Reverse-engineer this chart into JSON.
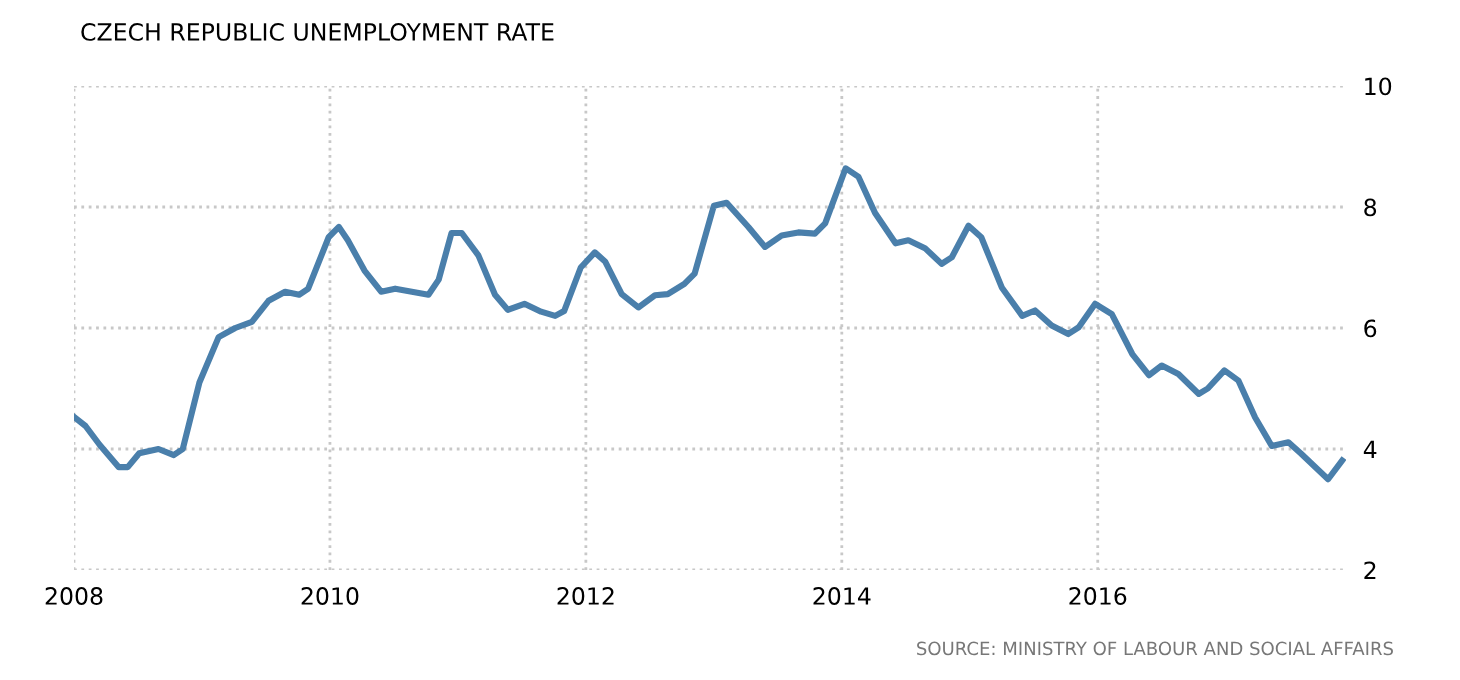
{
  "chart_data": {
    "type": "line",
    "title": "CZECH REPUBLIC UNEMPLOYMENT RATE",
    "annotations": [
      "SOURCE: MINISTRY OF LABOUR AND SOCIAL AFFAIRS"
    ],
    "x": [
      2008.0,
      2008.09,
      2008.2,
      2008.35,
      2008.42,
      2008.51,
      2008.66,
      2008.78,
      2008.85,
      2008.98,
      2009.13,
      2009.26,
      2009.39,
      2009.52,
      2009.65,
      2009.76,
      2009.83,
      2009.99,
      2010.07,
      2010.14,
      2010.27,
      2010.4,
      2010.51,
      2010.64,
      2010.77,
      2010.85,
      2010.95,
      2011.03,
      2011.16,
      2011.29,
      2011.39,
      2011.52,
      2011.65,
      2011.76,
      2011.83,
      2011.96,
      2012.07,
      2012.15,
      2012.28,
      2012.41,
      2012.54,
      2012.64,
      2012.77,
      2012.85,
      2013.0,
      2013.1,
      2013.27,
      2013.4,
      2013.53,
      2013.66,
      2013.79,
      2013.87,
      2014.03,
      2014.13,
      2014.26,
      2014.42,
      2014.52,
      2014.65,
      2014.78,
      2014.86,
      2014.99,
      2015.09,
      2015.25,
      2015.41,
      2015.51,
      2015.64,
      2015.77,
      2015.85,
      2015.98,
      2016.11,
      2016.27,
      2016.4,
      2016.5,
      2016.63,
      2016.79,
      2016.86,
      2016.99,
      2017.1,
      2017.23,
      2017.36,
      2017.49,
      2017.59,
      2017.8,
      2017.91
    ],
    "series": [
      {
        "color": "#4a7fab",
        "values": [
          4.53,
          4.38,
          4.07,
          3.7,
          3.7,
          3.93,
          4.0,
          3.9,
          4.0,
          5.1,
          5.85,
          6.0,
          6.1,
          6.45,
          6.6,
          6.55,
          6.65,
          7.5,
          7.67,
          7.45,
          6.95,
          6.6,
          6.65,
          6.6,
          6.55,
          6.8,
          7.57,
          7.57,
          7.2,
          6.55,
          6.3,
          6.4,
          6.27,
          6.2,
          6.28,
          7.0,
          7.25,
          7.1,
          6.56,
          6.34,
          6.54,
          6.56,
          6.73,
          6.9,
          8.02,
          8.07,
          7.67,
          7.34,
          7.53,
          7.58,
          7.56,
          7.73,
          8.64,
          8.5,
          7.9,
          7.4,
          7.45,
          7.32,
          7.06,
          7.17,
          7.69,
          7.5,
          6.67,
          6.2,
          6.29,
          6.04,
          5.9,
          6.01,
          6.4,
          6.23,
          5.57,
          5.22,
          5.38,
          5.24,
          4.91,
          5.0,
          5.3,
          5.13,
          4.52,
          4.05,
          4.11,
          3.92,
          3.5,
          3.81
        ]
      }
    ],
    "xlim": [
      2008,
      2017.94
    ],
    "xticks": [
      2008,
      2010,
      2012,
      2014,
      2016
    ],
    "ylim": [
      2,
      10
    ],
    "yticks": [
      2,
      4,
      6,
      8,
      10
    ],
    "grid": true,
    "legend": false,
    "marker": "none",
    "line_style": "solid"
  }
}
